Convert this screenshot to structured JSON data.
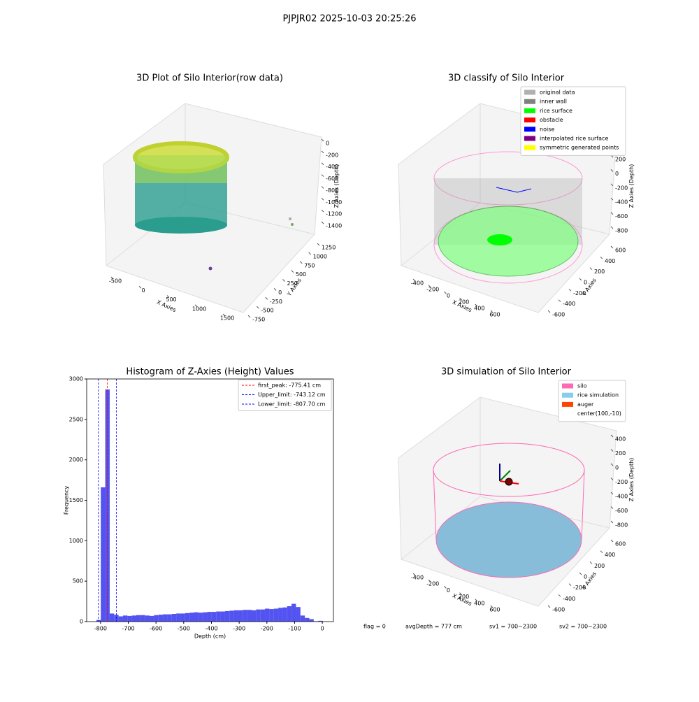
{
  "title": "PJPJR02 2025-10-03 20:25:26",
  "chart_data": [
    {
      "type": "scatter3d",
      "title": "3D Plot of Silo Interior(row data)",
      "xlabel": "X Axies",
      "ylabel": "Y Axies",
      "zlabel": "Z Axies (Depth)",
      "xticks": [
        -500,
        0,
        500,
        1000,
        1500
      ],
      "yticks": [
        -750,
        -500,
        -250,
        0,
        250,
        500,
        750,
        1000,
        1250
      ],
      "zticks": [
        0,
        -200,
        -400,
        -600,
        -800,
        -1000,
        -1200,
        -1400
      ]
    },
    {
      "type": "scatter3d",
      "title": "3D classify of Silo Interior",
      "xlabel": "X Axies",
      "ylabel": "Y Axies",
      "zlabel": "Z Axies (Depth)",
      "xticks": [
        -400,
        -200,
        0,
        200,
        400,
        600
      ],
      "yticks": [
        -600,
        -400,
        -200,
        0,
        200,
        400,
        600
      ],
      "zticks": [
        200,
        0,
        -200,
        -400,
        -600,
        -800
      ],
      "legend": [
        {
          "name": "original data",
          "color": "#b0b0b0"
        },
        {
          "name": "inner wall",
          "color": "#808080"
        },
        {
          "name": "rice surface",
          "color": "#00ff00"
        },
        {
          "name": "obstacle",
          "color": "#ff0000"
        },
        {
          "name": "noise",
          "color": "#0000ff"
        },
        {
          "name": "interpolated rice surface",
          "color": "#800080"
        },
        {
          "name": "symmetric generated points",
          "color": "#ffff00"
        }
      ]
    },
    {
      "type": "histogram",
      "title": "Histogram of Z-Axies (Height) Values",
      "xlabel": "Depth (cm)",
      "ylabel": "Frequency",
      "color": "#4040f0",
      "bins": [
        -815,
        -799,
        -783,
        -767,
        -751,
        -735,
        -719,
        -703,
        -687,
        -671,
        -655,
        -639,
        -623,
        -607,
        -591,
        -575,
        -559,
        -543,
        -527,
        -511,
        -495,
        -479,
        -463,
        -447,
        -431,
        -415,
        -399,
        -383,
        -367,
        -351,
        -335,
        -319,
        -303,
        -287,
        -271,
        -255,
        -239,
        -223,
        -207,
        -191,
        -175,
        -159,
        -143,
        -127,
        -111,
        -95,
        -79,
        -63,
        -47,
        -31,
        -15,
        1
      ],
      "values": [
        20,
        1660,
        2870,
        100,
        85,
        65,
        75,
        70,
        75,
        80,
        80,
        75,
        70,
        80,
        85,
        90,
        90,
        95,
        100,
        100,
        105,
        110,
        115,
        110,
        115,
        120,
        120,
        125,
        125,
        130,
        135,
        140,
        140,
        145,
        145,
        140,
        150,
        150,
        160,
        155,
        160,
        170,
        175,
        190,
        220,
        180,
        75,
        45,
        30,
        5,
        10
      ],
      "xlim": [
        -850,
        40
      ],
      "ylim": [
        0,
        3000
      ],
      "xticks": [
        -800,
        -700,
        -600,
        -500,
        -400,
        -300,
        -200,
        -100,
        0
      ],
      "yticks": [
        0,
        500,
        1000,
        1500,
        2000,
        2500,
        3000
      ],
      "vlines": [
        {
          "label": "first_peak: -775.41 cm",
          "value": -775.41,
          "color": "#ff0000"
        },
        {
          "label": "Upper_limit: -743.12 cm",
          "value": -743.12,
          "color": "#0000ff"
        },
        {
          "label": "Lower_limit: -807.70 cm",
          "value": -807.7,
          "color": "#0000ff"
        }
      ]
    },
    {
      "type": "scatter3d",
      "title": "3D simulation of Silo Interior",
      "xlabel": "X Axies",
      "ylabel": "Y Axies",
      "zlabel": "Z Axies (Depth)",
      "xticks": [
        -400,
        -200,
        0,
        200,
        400,
        600
      ],
      "yticks": [
        -600,
        -400,
        -200,
        0,
        200,
        400,
        600
      ],
      "zticks": [
        400,
        200,
        0,
        -200,
        -400,
        -600,
        -800
      ],
      "legend": [
        {
          "name": "silo",
          "color": "#ff69b4"
        },
        {
          "name": "rice simulation",
          "color": "#87ceeb"
        },
        {
          "name": "auger",
          "color": "#ff4500"
        },
        {
          "name": "center(100,-10)"
        }
      ],
      "annotations": [
        "flag = 0",
        "avgDepth = 777 cm",
        "sv1 = 700~2300",
        "sv2 = 700~2300"
      ]
    }
  ]
}
